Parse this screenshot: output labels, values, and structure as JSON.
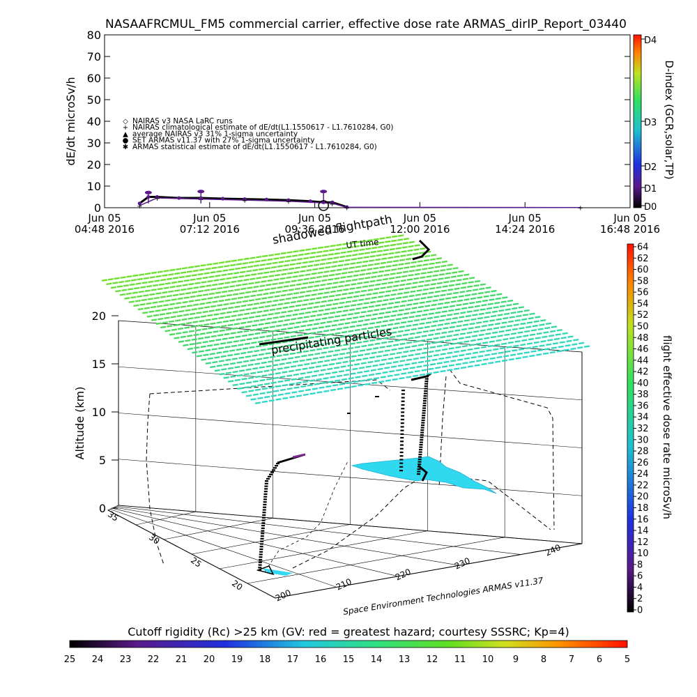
{
  "top_title": "NASAAFRCMUL_FM5 commercial carrier, effective dose rate ARMAS_dirIP_Report_03440",
  "top_panel": {
    "ylabel": "dE/dt microSv/h",
    "yticks": [
      "0",
      "10",
      "20",
      "30",
      "40",
      "50",
      "60",
      "70",
      "80"
    ],
    "xticks": [
      {
        "date": "Jun 05",
        "time": "04:48 2016"
      },
      {
        "date": "Jun 05",
        "time": "07:12 2016"
      },
      {
        "date": "Jun 05",
        "time": "09:36 2016"
      },
      {
        "date": "Jun 05",
        "time": "12:00 2016"
      },
      {
        "date": "Jun 05",
        "time": "14:24 2016"
      },
      {
        "date": "Jun 05",
        "time": "16:48 2016"
      }
    ],
    "legend": [
      {
        "symbol": "◇",
        "text": "NAIRAS v3 NASA LaRC runs"
      },
      {
        "symbol": "+",
        "text": "NAIRAS climatological estimate of dE/dt(L1.1550617 - L1.7610284, G0)"
      },
      {
        "symbol": "▲",
        "text": "average NAIRAS v3 31% 1-sigma uncertainty"
      },
      {
        "symbol": "●",
        "text": "SET ARMAS v11.37 with 27% 1-sigma uncertainty"
      },
      {
        "symbol": "✱",
        "text": "ARMAS statistical estimate of dE/dt(L1.1550617 - L1.7610284, G0)"
      }
    ],
    "right_label": "D-index (GCR,solar,TP)",
    "right_ticks": [
      "D0",
      "D1",
      "D2",
      "D3",
      "D4"
    ]
  },
  "chart_data": [
    {
      "type": "line",
      "title": "NASAAFRCMUL_FM5 commercial carrier, effective dose rate ARMAS_dirIP_Report_03440",
      "ylabel": "dE/dt microSv/h",
      "ylim": [
        0,
        80
      ],
      "xlim": [
        "2016-06-05 04:48",
        "2016-06-05 16:48"
      ],
      "series": [
        {
          "name": "SET ARMAS v11.37 with 27% 1-sigma uncertainty",
          "x": [
            "2016-06-05 05:36",
            "2016-06-05 05:48",
            "2016-06-05 06:00",
            "2016-06-05 06:30",
            "2016-06-05 07:00",
            "2016-06-05 07:30",
            "2016-06-05 08:00",
            "2016-06-05 08:30",
            "2016-06-05 09:00",
            "2016-06-05 09:30",
            "2016-06-05 09:48",
            "2016-06-05 10:00",
            "2016-06-05 10:20"
          ],
          "y": [
            2,
            5,
            5,
            4.5,
            4.5,
            4.2,
            4,
            3.8,
            3.5,
            3,
            2.5,
            2.5,
            0.3
          ]
        },
        {
          "name": "NAIRAS climatological estimate of dE/dt(L1.1550617 - L1.7610284, G0)",
          "x": [
            "2016-06-05 05:36",
            "2016-06-05 06:00",
            "2016-06-05 07:00",
            "2016-06-05 08:00",
            "2016-06-05 09:00",
            "2016-06-05 10:00",
            "2016-06-05 10:20",
            "2016-06-05 15:40"
          ],
          "y": [
            1,
            4.5,
            4,
            3.5,
            3,
            2,
            0.2,
            0.1
          ]
        }
      ]
    },
    {
      "type": "scatter",
      "title": "",
      "zlabel": "Altitude (km)",
      "zticks": [
        "0",
        "5",
        "10",
        "15",
        "20"
      ],
      "lat_ticks": [
        "20",
        "25",
        "30",
        "35"
      ],
      "lon_ticks": [
        "200",
        "210",
        "220",
        "230",
        "240"
      ],
      "colorbar_label": "flight effective dose rate microSv/h",
      "colorbar_ticks": [
        "0",
        "2",
        "4",
        "6",
        "8",
        "10",
        "12",
        "14",
        "16",
        "18",
        "20",
        "22",
        "24",
        "26",
        "28",
        "30",
        "32",
        "34",
        "36",
        "38",
        "40",
        "42",
        "44",
        "46",
        "48",
        "50",
        "52",
        "54",
        "56",
        "58",
        "60",
        "62",
        "64"
      ],
      "annotations": [
        "precipitating particles",
        "shadowed flightpath",
        "UT time"
      ],
      "credit": "Space Environment Technologies ARMAS v11.37"
    }
  ],
  "bottom_colorbar": {
    "title": "Cutoff rigidity (Rc) >25 km (GV: red = greatest hazard; courtesy SSSRC; Kp=4)",
    "ticks": [
      "25",
      "24",
      "23",
      "22",
      "21",
      "20",
      "19",
      "18",
      "17",
      "16",
      "15",
      "14",
      "13",
      "12",
      "11",
      "10",
      "9",
      "8",
      "7",
      "6",
      "5"
    ]
  },
  "colors": {
    "layer_top": "#5fd830",
    "layer_bottom": "#30d0c0",
    "cyan_patch": "#30d8f0",
    "track": "#000000",
    "track_purple": "#7a2a8a"
  }
}
